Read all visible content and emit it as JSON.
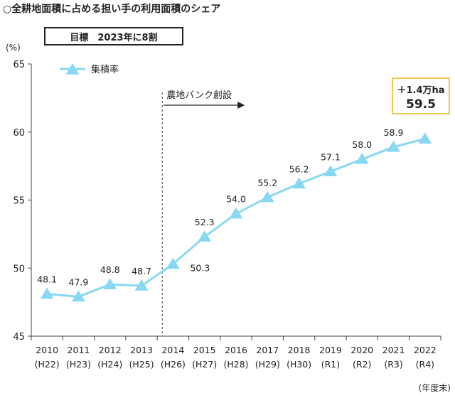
{
  "title": "○全耕地面積に占める担い手の利用面積のシェア",
  "target_label": "目標　2023年に8割",
  "unit_label": "(%)",
  "fiscal_note": "(年度末)",
  "callout": {
    "line1": "＋1.4万ha",
    "line2": "59.5"
  },
  "event_label": "農地バンク創設",
  "colors": {
    "series": "#88d8f2",
    "callout_border": "#f2c94c"
  },
  "chart_data": {
    "type": "line",
    "ylim": [
      45,
      65
    ],
    "yticks": [
      45,
      50,
      55,
      60,
      65
    ],
    "categories": [
      "2010",
      "2011",
      "2012",
      "2013",
      "2014",
      "2015",
      "2016",
      "2017",
      "2018",
      "2019",
      "2020",
      "2021",
      "2022"
    ],
    "sub_categories": [
      "(H22)",
      "(H23)",
      "(H24)",
      "(H25)",
      "(H26)",
      "(H27)",
      "(H28)",
      "(H29)",
      "(H30)",
      "(R1)",
      "(R2)",
      "(R3)",
      "(R4)"
    ],
    "series": [
      {
        "name": "集積率",
        "marker": "triangle",
        "values": [
          48.1,
          47.9,
          48.8,
          48.7,
          50.3,
          52.3,
          54.0,
          55.2,
          56.2,
          57.1,
          58.0,
          58.9,
          59.5
        ],
        "labels": [
          "48.1",
          "47.9",
          "48.8",
          "48.7",
          "50.3",
          "52.3",
          "54.0",
          "55.2",
          "56.2",
          "57.1",
          "58.0",
          "58.9",
          ""
        ]
      }
    ],
    "legend": "top-left",
    "event_marker": {
      "category": "2014"
    }
  }
}
